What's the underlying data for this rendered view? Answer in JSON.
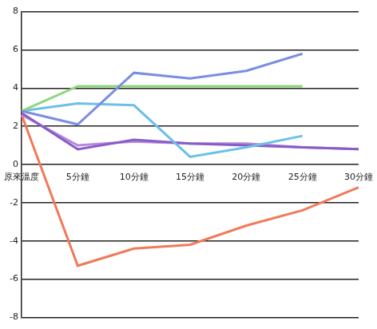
{
  "chart_data": {
    "type": "line",
    "categories": [
      "原來溫度",
      "5分鐘",
      "10分鐘",
      "15分鐘",
      "20分鐘",
      "25分鐘",
      "30分鐘"
    ],
    "series": [
      {
        "color": "#7b8fe0",
        "values": [
          2.8,
          2.1,
          4.8,
          4.5,
          4.9,
          5.8,
          null
        ]
      },
      {
        "color": "#8fd67a",
        "values": [
          2.8,
          4.1,
          4.1,
          4.1,
          4.1,
          4.1,
          null
        ]
      },
      {
        "color": "#6cc0e8",
        "values": [
          2.8,
          3.2,
          3.1,
          0.4,
          0.9,
          1.5,
          null
        ]
      },
      {
        "color": "#8a5cc9",
        "values": [
          2.7,
          0.8,
          1.3,
          1.1,
          1.0,
          0.9,
          0.8
        ]
      },
      {
        "color": "#b48ad8",
        "values": [
          2.6,
          1.0,
          1.2,
          1.1,
          1.1,
          0.9,
          0.8
        ]
      },
      {
        "color": "#f07a5a",
        "values": [
          2.6,
          -5.3,
          -4.4,
          -4.2,
          -3.2,
          -2.4,
          -1.2
        ]
      }
    ],
    "ylim": [
      -8,
      8
    ],
    "yticks": [
      -8,
      -6,
      -4,
      -2,
      0,
      2,
      4,
      6,
      8
    ],
    "grid": true
  }
}
